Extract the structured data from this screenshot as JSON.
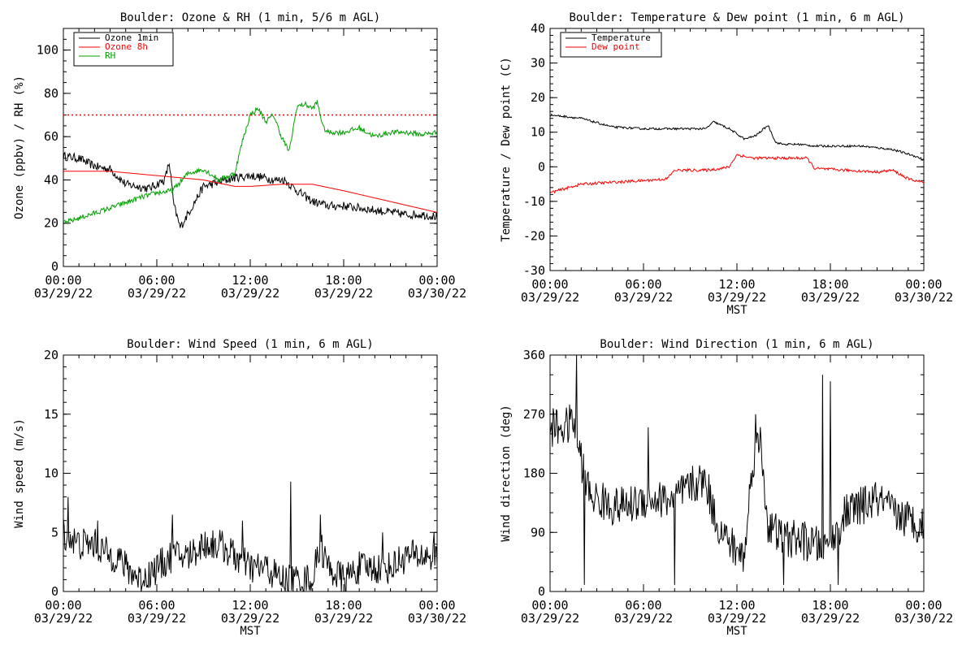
{
  "chart_data": [
    {
      "id": "ozone",
      "type": "line",
      "title": "Boulder: Ozone & RH (1 min, 5/6 m AGL)",
      "xlabel": "",
      "ylabel": "Ozone (ppbv) / RH (%)",
      "ylim": [
        0,
        110
      ],
      "yticks": [
        0,
        20,
        40,
        60,
        80,
        100
      ],
      "x_tick_times": [
        "00:00",
        "06:00",
        "12:00",
        "18:00",
        "00:00"
      ],
      "x_tick_dates": [
        "03/29/22",
        "03/29/22",
        "03/29/22",
        "03/29/22",
        "03/30/22"
      ],
      "legend": "top-left",
      "reference_line": {
        "y": 70,
        "color": "#ff0000",
        "style": "dotted"
      },
      "series": [
        {
          "name": "Ozone 1min",
          "color": "#000000",
          "noise": 2.0,
          "x": [
            0,
            1,
            1.8,
            2.2,
            3.0,
            4.0,
            5.5,
            6.5,
            6.8,
            7.1,
            7.5,
            9,
            10.5,
            11,
            12,
            13,
            13.5,
            14.2,
            15,
            16,
            17,
            18,
            19,
            20,
            21,
            22,
            23,
            24
          ],
          "y": [
            51,
            50,
            47,
            46,
            45,
            38,
            36,
            40,
            48,
            28,
            18,
            37,
            40,
            41,
            42,
            41,
            40,
            40,
            35,
            30,
            28,
            28,
            27,
            26,
            25,
            24,
            24,
            23
          ]
        },
        {
          "name": "Ozone 8h",
          "color": "#ff0000",
          "noise": 0,
          "x": [
            0,
            3,
            6,
            9,
            11,
            12,
            14,
            16,
            18,
            21,
            24
          ],
          "y": [
            44,
            44,
            42,
            40,
            37,
            37,
            38,
            38,
            35,
            30,
            25
          ]
        },
        {
          "name": "RH",
          "color": "#00a000",
          "noise": 1.2,
          "x": [
            0,
            3,
            5,
            6,
            7,
            8,
            9,
            10,
            11,
            11.5,
            12,
            12.5,
            13,
            13.5,
            14,
            14.5,
            15,
            15.5,
            16,
            16.3,
            16.7,
            17,
            18,
            19,
            20,
            21,
            22,
            23,
            24
          ],
          "y": [
            20,
            27,
            32,
            34,
            35,
            43,
            45,
            40,
            43,
            58,
            70,
            73,
            67,
            70,
            60,
            53,
            74,
            75,
            73,
            76,
            64,
            62,
            62,
            64,
            60,
            62,
            62,
            61,
            62
          ]
        }
      ]
    },
    {
      "id": "temp",
      "type": "line",
      "title": "Boulder: Temperature & Dew point (1 min, 6 m AGL)",
      "xlabel": "MST",
      "ylabel": "Temperature / Dew point (C)",
      "ylim": [
        -30,
        40
      ],
      "yticks": [
        -30,
        -20,
        -10,
        0,
        10,
        20,
        30,
        40
      ],
      "x_tick_times": [
        "00:00",
        "06:00",
        "12:00",
        "18:00",
        "00:00"
      ],
      "x_tick_dates": [
        "03/29/22",
        "03/29/22",
        "03/29/22",
        "03/29/22",
        "03/30/22"
      ],
      "legend": "top-left",
      "series": [
        {
          "name": "Temperature",
          "color": "#000000",
          "noise": 0.3,
          "x": [
            0,
            2,
            4,
            6,
            8,
            10,
            10.5,
            11.5,
            12.5,
            13.2,
            14,
            14.5,
            15,
            16,
            17,
            18,
            20,
            22,
            23.5,
            24
          ],
          "y": [
            15,
            14,
            11.5,
            11,
            11,
            11,
            13,
            11,
            8,
            9,
            12,
            7,
            6.5,
            6.5,
            6,
            6,
            6,
            5,
            3,
            2
          ]
        },
        {
          "name": "Dew point",
          "color": "#ff0000",
          "noise": 0.4,
          "x": [
            0,
            2,
            4,
            6,
            7.5,
            8,
            10,
            11,
            11.5,
            12,
            13,
            14,
            15,
            16,
            16.5,
            17,
            19,
            21,
            22,
            23,
            24
          ],
          "y": [
            -7.5,
            -5,
            -4.5,
            -4,
            -3.5,
            -1,
            -1,
            -0.5,
            0,
            3.5,
            2.5,
            2.5,
            2.5,
            2.5,
            2.5,
            -0.5,
            -1,
            -1.5,
            -1,
            -3.5,
            -4.5
          ]
        }
      ]
    },
    {
      "id": "wspd",
      "type": "line",
      "title": "Boulder: Wind Speed (1 min, 6 m AGL)",
      "xlabel": "MST",
      "ylabel": "Wind speed (m/s)",
      "ylim": [
        0,
        20
      ],
      "yticks": [
        0,
        5,
        10,
        15,
        20
      ],
      "x_tick_times": [
        "00:00",
        "06:00",
        "12:00",
        "18:00",
        "00:00"
      ],
      "x_tick_dates": [
        "03/29/22",
        "03/29/22",
        "03/29/22",
        "03/29/22",
        "03/30/22"
      ],
      "series": [
        {
          "name": "",
          "color": "#000000",
          "noise": 1.4,
          "x": [
            0,
            1,
            2,
            3,
            3.5,
            4,
            5,
            6,
            7,
            8,
            9,
            10,
            11,
            12,
            13,
            14,
            14.8,
            15,
            16,
            16.5,
            17,
            18,
            19,
            20,
            21,
            22,
            23,
            24
          ],
          "y": [
            5,
            4,
            4,
            3,
            3,
            2,
            1,
            2,
            3,
            3,
            4,
            4,
            3,
            2,
            2,
            1,
            1,
            1,
            1,
            4,
            2,
            1,
            2,
            2,
            2,
            3,
            3,
            3
          ],
          "spikes": [
            [
              0.3,
              8
            ],
            [
              2.2,
              6
            ],
            [
              7.0,
              6.5
            ],
            [
              11.5,
              6
            ],
            [
              14.6,
              9.3
            ],
            [
              16.5,
              6.5
            ],
            [
              20.5,
              5
            ],
            [
              23.8,
              5
            ]
          ]
        }
      ]
    },
    {
      "id": "wdir",
      "type": "line",
      "title": "Boulder: Wind Direction (1 min, 6 m AGL)",
      "xlabel": "MST",
      "ylabel": "Wind direction (deg)",
      "ylim": [
        0,
        360
      ],
      "yticks": [
        0,
        90,
        180,
        270,
        360
      ],
      "x_tick_times": [
        "00:00",
        "06:00",
        "12:00",
        "18:00",
        "00:00"
      ],
      "x_tick_dates": [
        "03/29/22",
        "03/29/22",
        "03/29/22",
        "03/29/22",
        "03/30/22"
      ],
      "series": [
        {
          "name": "",
          "color": "#000000",
          "noise": 30,
          "x": [
            0,
            1,
            1.5,
            2,
            2.5,
            3,
            4,
            5,
            6,
            7,
            8,
            9,
            10,
            10.5,
            11,
            12,
            12.5,
            13,
            13.5,
            14,
            15,
            16,
            17,
            18,
            19,
            20,
            21,
            22,
            23,
            24
          ],
          "y": [
            250,
            250,
            260,
            200,
            150,
            140,
            130,
            130,
            140,
            140,
            140,
            160,
            170,
            120,
            90,
            60,
            55,
            200,
            230,
            100,
            80,
            80,
            70,
            70,
            120,
            130,
            140,
            120,
            110,
            100
          ],
          "spikes": [
            [
              1.7,
              360
            ],
            [
              2.2,
              10
            ],
            [
              6.3,
              250
            ],
            [
              8.0,
              10
            ],
            [
              13.2,
              270
            ],
            [
              15.0,
              10
            ],
            [
              17.5,
              330
            ],
            [
              18.0,
              320
            ],
            [
              18.5,
              10
            ]
          ]
        }
      ]
    }
  ]
}
